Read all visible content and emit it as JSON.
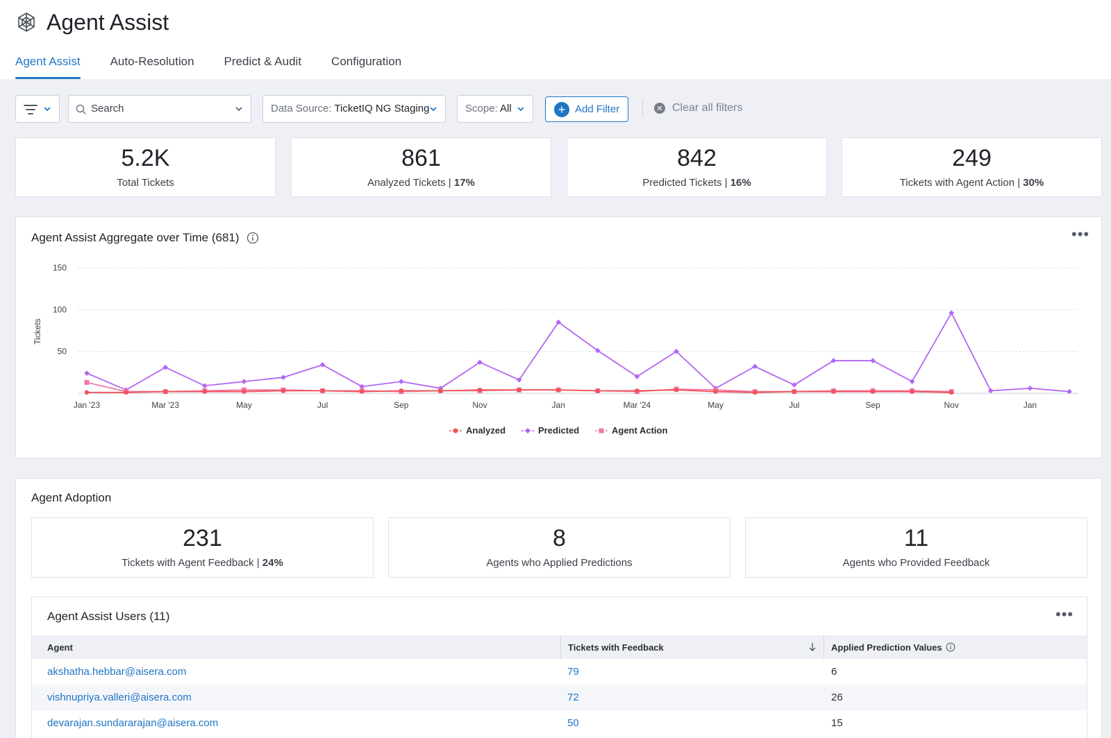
{
  "header": {
    "title": "Agent Assist",
    "tabs": [
      {
        "label": "Agent Assist",
        "active": true
      },
      {
        "label": "Auto-Resolution"
      },
      {
        "label": "Predict & Audit"
      },
      {
        "label": "Configuration"
      }
    ]
  },
  "filters": {
    "search_placeholder": "Search",
    "data_source_label": "Data Source:",
    "data_source_value": "TicketIQ NG Staging",
    "scope_label": "Scope:",
    "scope_value": "All",
    "add_filter": "Add Filter",
    "clear_all": "Clear all filters"
  },
  "stats": [
    {
      "value": "5.2K",
      "label": "Total Tickets",
      "pct": ""
    },
    {
      "value": "861",
      "label": "Analyzed Tickets",
      "pct": "17%"
    },
    {
      "value": "842",
      "label": "Predicted Tickets",
      "pct": "16%"
    },
    {
      "value": "249",
      "label": "Tickets with Agent Action",
      "pct": "30%"
    }
  ],
  "chart_panel": {
    "title": "Agent Assist Aggregate over Time (681)"
  },
  "chart_data": {
    "type": "line",
    "ylabel": "Tickets",
    "xlabel": "",
    "ylim": [
      0,
      150
    ],
    "yticks": [
      50,
      100,
      150
    ],
    "grid": true,
    "legend_position": "bottom",
    "x_ticks": [
      "Jan '23",
      "Mar '23",
      "May",
      "Jul",
      "Sep",
      "Nov",
      "Jan",
      "Mar '24",
      "May",
      "Jul",
      "Sep",
      "Nov",
      "Jan"
    ],
    "x": [
      "2023-01",
      "2023-02",
      "2023-03",
      "2023-04",
      "2023-05",
      "2023-06",
      "2023-07",
      "2023-08",
      "2023-09",
      "2023-10",
      "2023-11",
      "2023-12",
      "2024-01",
      "2024-02",
      "2024-03",
      "2024-04",
      "2024-05",
      "2024-06",
      "2024-07",
      "2024-08",
      "2024-09",
      "2024-10",
      "2024-11",
      "2024-12",
      "2025-01",
      "2025-02"
    ],
    "series": [
      {
        "name": "Analyzed",
        "color": "#f0535b",
        "marker": "circle",
        "values": [
          1,
          1,
          2,
          2,
          2,
          3,
          3,
          2,
          3,
          3,
          4,
          4,
          4,
          3,
          3,
          4,
          2,
          1,
          2,
          2,
          2,
          2,
          1,
          null,
          null,
          null
        ]
      },
      {
        "name": "Predicted",
        "color": "#b366f2",
        "marker": "diamond",
        "values": [
          24,
          4,
          31,
          9,
          14,
          19,
          34,
          8,
          14,
          6,
          37,
          16,
          85,
          51,
          20,
          50,
          6,
          32,
          10,
          39,
          39,
          14,
          96,
          3,
          6,
          2
        ]
      },
      {
        "name": "Agent Action",
        "color": "#f07aa6",
        "marker": "square",
        "values": [
          13,
          2,
          2,
          3,
          4,
          4,
          3,
          3,
          2,
          3,
          3,
          4,
          4,
          3,
          2,
          5,
          4,
          2,
          2,
          3,
          3,
          3,
          2,
          null,
          null,
          null
        ]
      }
    ]
  },
  "adoption": {
    "title": "Agent Adoption",
    "stats": [
      {
        "value": "231",
        "label": "Tickets with Agent Feedback",
        "pct": "24%"
      },
      {
        "value": "8",
        "label": "Agents who Applied Predictions",
        "pct": ""
      },
      {
        "value": "11",
        "label": "Agents who Provided Feedback",
        "pct": ""
      }
    ]
  },
  "users_table": {
    "title": "Agent Assist Users (11)",
    "columns": [
      "Agent",
      "Tickets with Feedback",
      "Applied Prediction Values"
    ],
    "rows": [
      {
        "agent": "akshatha.hebbar@aisera.com",
        "feedback": "79",
        "applied": "6"
      },
      {
        "agent": "vishnupriya.valleri@aisera.com",
        "feedback": "72",
        "applied": "26"
      },
      {
        "agent": "devarajan.sundararajan@aisera.com",
        "feedback": "50",
        "applied": "15"
      }
    ]
  }
}
